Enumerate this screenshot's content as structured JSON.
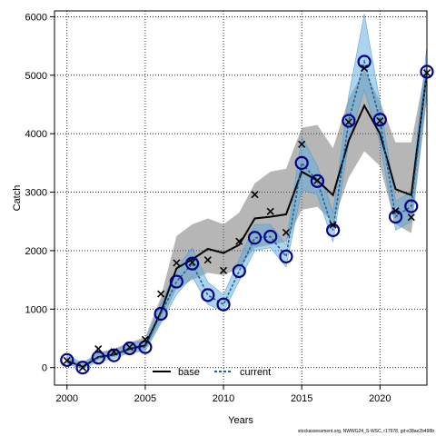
{
  "chart_data": {
    "type": "line",
    "xlabel": "Years",
    "ylabel": "Catch",
    "xlim": [
      1999.2,
      2023.0
    ],
    "ylim": [
      -300,
      6100
    ],
    "xticks": [
      2000,
      2005,
      2010,
      2015,
      2020
    ],
    "yticks": [
      0,
      1000,
      2000,
      3000,
      4000,
      5000,
      6000
    ],
    "grid": true,
    "legend_position": "bottom-center",
    "x": [
      2000,
      2001,
      2002,
      2003,
      2004,
      2005,
      2006,
      2007,
      2008,
      2009,
      2010,
      2011,
      2012,
      2013,
      2014,
      2015,
      2016,
      2017,
      2018,
      2019,
      2020,
      2021,
      2022,
      2023
    ],
    "series": [
      {
        "name": "base",
        "color": "#000000",
        "values": [
          120,
          10,
          180,
          220,
          320,
          380,
          950,
          1700,
          1850,
          2030,
          1960,
          2100,
          2550,
          2580,
          2620,
          3350,
          3200,
          2950,
          3880,
          4480,
          4000,
          3050,
          2950,
          5050
        ],
        "lower": [
          90,
          0,
          140,
          180,
          260,
          300,
          780,
          1350,
          1500,
          1620,
          1580,
          1700,
          2050,
          2100,
          2150,
          2700,
          2750,
          2480,
          3250,
          3700,
          3450,
          2450,
          2300,
          4600
        ],
        "upper": [
          180,
          60,
          260,
          320,
          430,
          520,
          1200,
          2250,
          2450,
          2550,
          2450,
          2650,
          3150,
          3350,
          3400,
          4100,
          4150,
          3750,
          4600,
          5100,
          4550,
          3850,
          3850,
          5250
        ]
      },
      {
        "name": "current",
        "color": "#1f5fa0",
        "values": [
          130,
          0,
          170,
          210,
          330,
          350,
          920,
          1470,
          1780,
          1240,
          1080,
          1650,
          2220,
          2240,
          1900,
          3500,
          3190,
          2350,
          4220,
          5230,
          4240,
          2580,
          2760,
          5060
        ],
        "lower": [
          70,
          -30,
          110,
          150,
          260,
          280,
          760,
          1250,
          1560,
          1080,
          960,
          1480,
          2000,
          2050,
          1720,
          3050,
          2950,
          2150,
          3850,
          4750,
          3850,
          2350,
          2500,
          4700
        ],
        "upper": [
          210,
          80,
          250,
          290,
          420,
          450,
          1100,
          1700,
          2050,
          1460,
          1250,
          1850,
          2450,
          2450,
          2100,
          3950,
          3450,
          2650,
          4650,
          6050,
          4550,
          2850,
          3000,
          5500
        ]
      }
    ],
    "observed": [
      120,
      0,
      320,
      270,
      350,
      480,
      1260,
      1790,
      1800,
      1840,
      1660,
      2160,
      2960,
      2670,
      2310,
      3820,
      3200,
      2440,
      4200,
      5120,
      4220,
      2680,
      2570,
      5040
    ],
    "observed_marker": "x",
    "footnote": "stockassessment.org, NWWG24_S-WSC, r17978, git:e38ae2b498b"
  }
}
